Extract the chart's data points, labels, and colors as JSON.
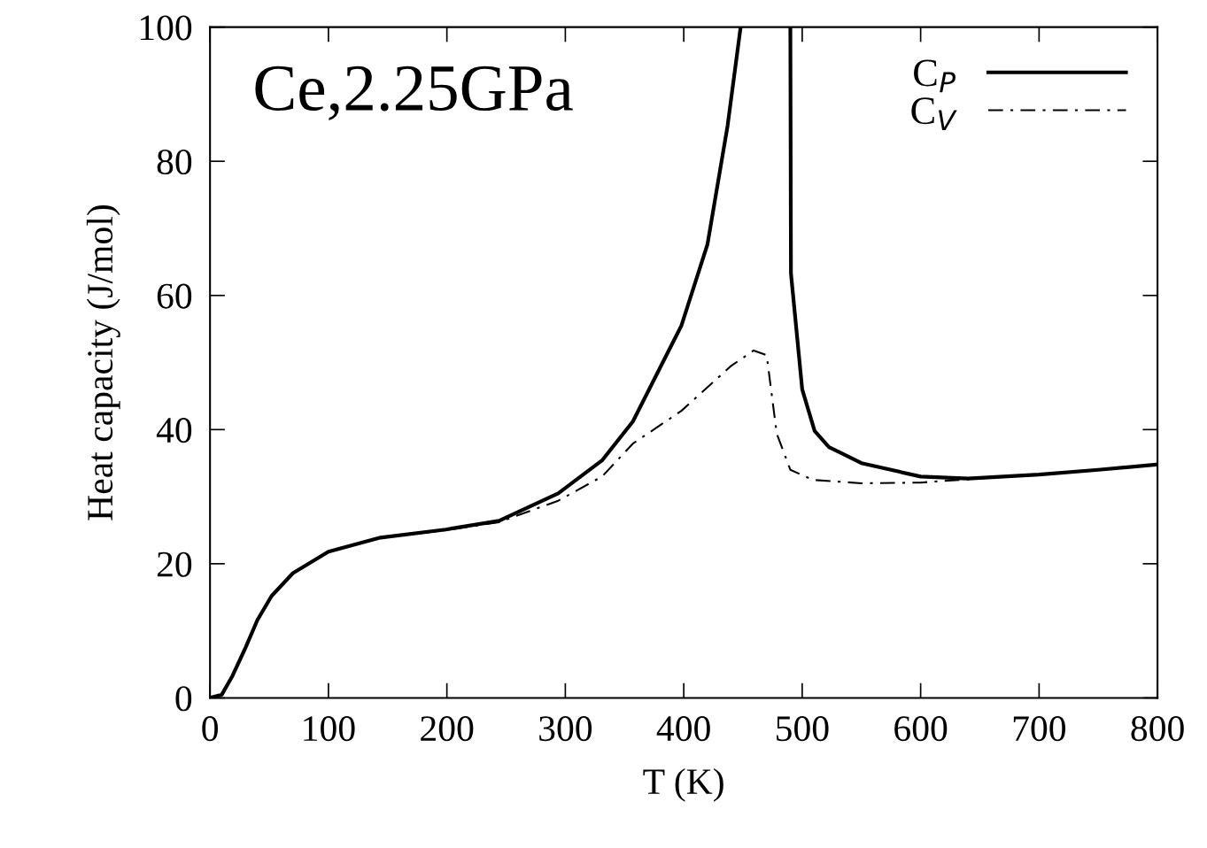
{
  "chart_data": {
    "type": "line",
    "xlabel": "T (K)",
    "ylabel": "Heat capacity (J/mol)",
    "annotations": [
      "Ce,2.25GPa"
    ],
    "xlim": [
      0,
      800
    ],
    "xticks": [
      0,
      100,
      200,
      300,
      400,
      500,
      600,
      700,
      800
    ],
    "ylim": [
      0,
      100
    ],
    "yticks": [
      0,
      20,
      40,
      60,
      80,
      100
    ],
    "grid": false,
    "legend": "top right",
    "series": [
      {
        "name": "C$_{P}$",
        "color": "#000000",
        "line_style": "solid",
        "x": [
          0,
          10,
          19,
          30,
          40,
          52,
          70,
          100,
          144,
          199,
          244,
          294,
          331,
          357,
          398,
          420,
          437,
          448,
          469,
          490,
          490.5,
          500,
          510.5,
          522.6,
          550,
          600,
          640,
          700,
          750,
          800
        ],
        "values": [
          0,
          0.5,
          3.3,
          7.5,
          11.6,
          15.2,
          18.6,
          21.8,
          23.9,
          25.1,
          26.4,
          30.5,
          35.4,
          41.2,
          55.5,
          67.6,
          85.3,
          100,
          null,
          100,
          63.3,
          46,
          39.8,
          37.4,
          35,
          33,
          32.7,
          33.3,
          34,
          34.8
        ]
      },
      {
        "name": "C$_{V}$",
        "color": "#000000",
        "line_style": "dashdot",
        "x": [
          0,
          10,
          19,
          30,
          40,
          52,
          70,
          100,
          144,
          199,
          244,
          294,
          331,
          357,
          398,
          440,
          459,
          470,
          478.5,
          490,
          509,
          550,
          600,
          640,
          700,
          750,
          800
        ],
        "values": [
          0,
          0.5,
          3.3,
          7.5,
          11.6,
          15.2,
          18.6,
          21.8,
          23.9,
          25.0,
          26.2,
          29.4,
          33.0,
          37.9,
          42.8,
          49.5,
          51.8,
          51.1,
          39.4,
          34,
          32.5,
          32,
          32.1,
          32.6,
          33.3,
          34,
          34.8
        ]
      }
    ]
  }
}
